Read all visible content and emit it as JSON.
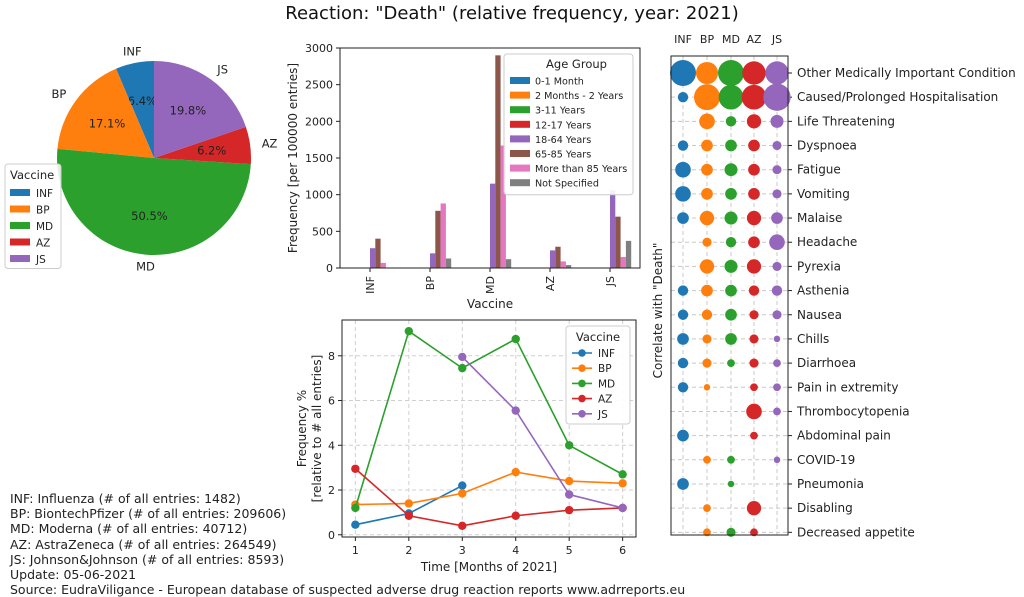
{
  "title": "Reaction: \"Death\" (relative frequency, year: 2021)",
  "vaccines": [
    "INF",
    "BP",
    "MD",
    "AZ",
    "JS"
  ],
  "colors": {
    "INF": "#1f77b4",
    "BP": "#ff7f0e",
    "MD": "#2ca02c",
    "AZ": "#d62728",
    "JS": "#9467bd",
    "age_0_1_month": "#1f77b4",
    "age_2m_2y": "#ff7f0e",
    "age_3_11y": "#2ca02c",
    "age_12_17y": "#d62728",
    "age_18_64y": "#9467bd",
    "age_65_85y": "#8c564b",
    "age_85plus": "#e377c2",
    "age_not_specified": "#7f7f7f"
  },
  "chart_data": [
    {
      "id": "pie",
      "type": "pie",
      "title": "",
      "legend_title": "Vaccine",
      "legend_position": "bottom-left",
      "labels": [
        "INF",
        "BP",
        "MD",
        "AZ",
        "JS"
      ],
      "values": [
        6.4,
        17.1,
        50.5,
        6.2,
        19.8
      ],
      "value_labels": [
        "6.4%",
        "17.1%",
        "50.5%",
        "6.2%",
        "19.8%"
      ]
    },
    {
      "id": "bar",
      "type": "bar",
      "title": "",
      "xlabel": "Vaccine",
      "ylabel": "Frequency [per 100000 entries]",
      "ylim": [
        0,
        3000
      ],
      "yticks": [
        "0",
        "500",
        "1000",
        "1500",
        "2000",
        "2500",
        "3000"
      ],
      "categories": [
        "INF",
        "BP",
        "MD",
        "AZ",
        "JS"
      ],
      "legend_title": "Age Group",
      "legend_position": "top-right",
      "series": [
        {
          "name": "0-1 Month",
          "values": [
            0,
            0,
            0,
            0,
            0
          ]
        },
        {
          "name": "2 Months - 2 Years",
          "values": [
            0,
            0,
            0,
            0,
            0
          ]
        },
        {
          "name": "3-11 Years",
          "values": [
            0,
            0,
            0,
            0,
            0
          ]
        },
        {
          "name": "12-17 Years",
          "values": [
            0,
            0,
            0,
            0,
            0
          ]
        },
        {
          "name": "18-64 Years",
          "values": [
            270,
            200,
            1150,
            240,
            1060
          ]
        },
        {
          "name": "65-85 Years",
          "values": [
            400,
            780,
            2900,
            290,
            700
          ]
        },
        {
          "name": "More than 85 Years",
          "values": [
            70,
            880,
            1670,
            90,
            150
          ]
        },
        {
          "name": "Not Specified",
          "values": [
            0,
            130,
            120,
            40,
            370
          ]
        }
      ]
    },
    {
      "id": "line",
      "type": "line",
      "title": "",
      "xlabel": "Time [Months of 2021]",
      "ylabel_line1": "Frequency %",
      "ylabel_line2": "[relative to # all entries]",
      "xlim": [
        0.75,
        6.25
      ],
      "ylim": [
        -0.1,
        9.6
      ],
      "xticks": [
        "1",
        "2",
        "3",
        "4",
        "5",
        "6"
      ],
      "yticks": [
        "0",
        "2",
        "4",
        "6",
        "8"
      ],
      "legend_title": "Vaccine",
      "legend_position": "top-right",
      "series": [
        {
          "name": "INF",
          "x": [
            1,
            2,
            3
          ],
          "values": [
            0.45,
            0.95,
            2.2
          ]
        },
        {
          "name": "BP",
          "x": [
            1,
            2,
            3,
            4,
            5,
            6
          ],
          "values": [
            1.35,
            1.4,
            1.85,
            2.8,
            2.4,
            2.3
          ]
        },
        {
          "name": "MD",
          "x": [
            1,
            2,
            3,
            4,
            5,
            6
          ],
          "values": [
            1.2,
            9.1,
            7.45,
            8.75,
            4.0,
            2.7
          ]
        },
        {
          "name": "AZ",
          "x": [
            1,
            2,
            3,
            4,
            5,
            6
          ],
          "values": [
            2.95,
            0.85,
            0.4,
            0.85,
            1.1,
            1.2
          ]
        },
        {
          "name": "JS",
          "x": [
            3,
            4,
            5,
            6
          ],
          "values": [
            7.95,
            5.55,
            1.8,
            1.2
          ]
        }
      ]
    },
    {
      "id": "bubble",
      "type": "scatter",
      "title": "",
      "ylabel": "Correlate with \"Death\"",
      "columns": [
        "INF",
        "BP",
        "MD",
        "AZ",
        "JS"
      ],
      "rows": [
        {
          "label": "Other Medically Important Condition",
          "sizes": [
            1.0,
            0.85,
            1.0,
            0.9,
            0.9
          ]
        },
        {
          "label": "Caused/Prolonged Hospitalisation",
          "sizes": [
            0.4,
            1.0,
            0.95,
            0.95,
            1.05
          ]
        },
        {
          "label": "Life Threatening",
          "sizes": [
            0,
            0.6,
            0.4,
            0.55,
            0.5
          ]
        },
        {
          "label": "Dyspnoea",
          "sizes": [
            0.4,
            0.45,
            0.45,
            0.45,
            0.35
          ]
        },
        {
          "label": "Fatigue",
          "sizes": [
            0.6,
            0.45,
            0.5,
            0.45,
            0.35
          ]
        },
        {
          "label": "Vomiting",
          "sizes": [
            0.6,
            0.45,
            0.45,
            0.45,
            0.35
          ]
        },
        {
          "label": "Malaise",
          "sizes": [
            0.45,
            0.55,
            0.5,
            0.55,
            0.45
          ]
        },
        {
          "label": "Headache",
          "sizes": [
            0,
            0.35,
            0.4,
            0.45,
            0.6
          ]
        },
        {
          "label": "Pyrexia",
          "sizes": [
            0,
            0.55,
            0.5,
            0.55,
            0.35
          ]
        },
        {
          "label": "Asthenia",
          "sizes": [
            0.4,
            0.45,
            0.45,
            0.4,
            0.4
          ]
        },
        {
          "label": "Nausea",
          "sizes": [
            0.4,
            0.4,
            0.45,
            0.35,
            0.35
          ]
        },
        {
          "label": "Chills",
          "sizes": [
            0.45,
            0.35,
            0.45,
            0.35,
            0.25
          ]
        },
        {
          "label": "Diarrhoea",
          "sizes": [
            0.4,
            0.35,
            0.3,
            0.35,
            0.3
          ]
        },
        {
          "label": "Pain in extremity",
          "sizes": [
            0.4,
            0.25,
            0,
            0.3,
            0.3
          ]
        },
        {
          "label": "Thrombocytopenia",
          "sizes": [
            0,
            0,
            0,
            0.6,
            0.3
          ]
        },
        {
          "label": "Abdominal pain",
          "sizes": [
            0.45,
            0,
            0,
            0.3,
            0
          ]
        },
        {
          "label": "COVID-19",
          "sizes": [
            0,
            0.3,
            0.3,
            0,
            0.25
          ]
        },
        {
          "label": "Pneumonia",
          "sizes": [
            0.45,
            0,
            0.25,
            0,
            0
          ]
        },
        {
          "label": "Disabling",
          "sizes": [
            0,
            0.3,
            0,
            0.55,
            0
          ]
        },
        {
          "label": "Decreased appetite",
          "sizes": [
            0,
            0.3,
            0.35,
            0.3,
            0
          ]
        }
      ]
    }
  ],
  "info": {
    "inf": "INF: Influenza (# of all entries: 1482)",
    "bp": "BP: BiontechPfizer (# of all entries: 209606)",
    "md": "MD: Moderna (# of all entries: 40712)",
    "az": "AZ: AstraZeneca (# of all entries: 264549)",
    "js": "JS: Johnson&Johnson (# of all entries: 8593)",
    "update": "Update: 05-06-2021",
    "source": "Source: EudraViligance - European database of suspected adverse drug reaction reports www.adrreports.eu"
  }
}
